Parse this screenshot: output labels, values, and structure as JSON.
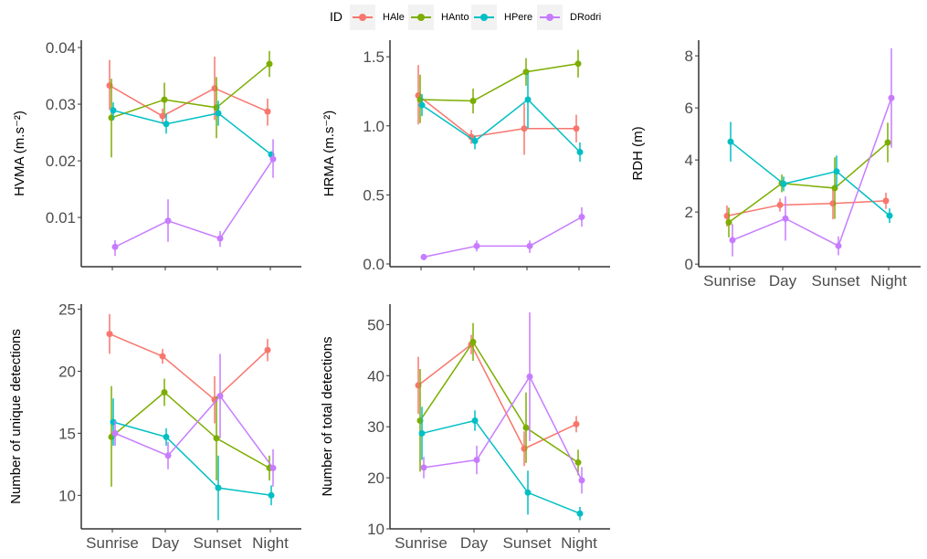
{
  "legend": {
    "title": "ID",
    "position": "top",
    "items": [
      {
        "name": "HAle",
        "color": "#F8766D"
      },
      {
        "name": "HAnto",
        "color": "#7CAE00"
      },
      {
        "name": "HPere",
        "color": "#00BFC4"
      },
      {
        "name": "DRodri",
        "color": "#C77CFF"
      }
    ]
  },
  "chart_data": [
    {
      "type": "line",
      "id": "hvma",
      "ylabel": "HVMA (m.s⁻²)",
      "xlabel": "",
      "categories": [
        "Sunrise",
        "Day",
        "Sunset",
        "Night"
      ],
      "show_x_tick_labels": false,
      "ylim": [
        0.0013,
        0.0413
      ],
      "yticks": [
        0.01,
        0.02,
        0.03,
        0.04
      ],
      "ytick_labels": [
        "0.01",
        "0.02",
        "0.03",
        "0.04"
      ],
      "grid": false,
      "series": [
        {
          "name": "HAle",
          "values": [
            0.0333,
            0.0279,
            0.0328,
            0.0287
          ],
          "lower": [
            0.029,
            0.0265,
            0.0272,
            0.0262
          ],
          "upper": [
            0.0378,
            0.0292,
            0.0384,
            0.031
          ]
        },
        {
          "name": "HAnto",
          "values": [
            0.0276,
            0.0308,
            0.0294,
            0.0371
          ],
          "lower": [
            0.0206,
            0.0283,
            0.024,
            0.0348
          ],
          "upper": [
            0.0345,
            0.0338,
            0.0348,
            0.0394
          ]
        },
        {
          "name": "HPere",
          "values": [
            0.0289,
            0.0265,
            0.0284,
            0.0211
          ],
          "lower": [
            0.0272,
            0.0248,
            0.0262,
            0.0205
          ],
          "upper": [
            0.0303,
            0.0283,
            0.0306,
            0.0217
          ]
        },
        {
          "name": "DRodri",
          "values": [
            0.0048,
            0.0094,
            0.0063,
            0.0203
          ],
          "lower": [
            0.0032,
            0.0057,
            0.0048,
            0.017
          ],
          "upper": [
            0.006,
            0.0132,
            0.0076,
            0.0238
          ]
        }
      ]
    },
    {
      "type": "line",
      "id": "hrma",
      "ylabel": "HRMA (m.s⁻²)",
      "xlabel": "",
      "categories": [
        "Sunrise",
        "Day",
        "Sunset",
        "Night"
      ],
      "show_x_tick_labels": false,
      "ylim": [
        -0.02,
        1.62
      ],
      "yticks": [
        0.0,
        0.5,
        1.0,
        1.5
      ],
      "ytick_labels": [
        "0.0",
        "0.5",
        "1.0",
        "1.5"
      ],
      "grid": false,
      "series": [
        {
          "name": "HAle",
          "values": [
            1.22,
            0.92,
            0.98,
            0.98
          ],
          "lower": [
            1.01,
            0.87,
            0.79,
            0.88
          ],
          "upper": [
            1.44,
            0.97,
            1.16,
            1.08
          ]
        },
        {
          "name": "HAnto",
          "values": [
            1.19,
            1.18,
            1.39,
            1.45
          ],
          "lower": [
            1.02,
            1.09,
            1.29,
            1.35
          ],
          "upper": [
            1.37,
            1.27,
            1.49,
            1.55
          ]
        },
        {
          "name": "HPere",
          "values": [
            1.15,
            0.89,
            1.19,
            0.81
          ],
          "lower": [
            1.07,
            0.83,
            0.98,
            0.74
          ],
          "upper": [
            1.23,
            0.93,
            1.38,
            0.88
          ]
        },
        {
          "name": "DRodri",
          "values": [
            0.05,
            0.13,
            0.13,
            0.34
          ],
          "lower": [
            0.04,
            0.09,
            0.08,
            0.27
          ],
          "upper": [
            0.06,
            0.17,
            0.17,
            0.41
          ]
        }
      ]
    },
    {
      "type": "line",
      "id": "rdh",
      "ylabel": "RDH (m)",
      "xlabel": "",
      "categories": [
        "Sunrise",
        "Day",
        "Sunset",
        "Night"
      ],
      "show_x_tick_labels": true,
      "ylim": [
        -0.1,
        8.6
      ],
      "yticks": [
        0,
        2,
        4,
        6,
        8
      ],
      "ytick_labels": [
        "0",
        "2",
        "4",
        "6",
        "8"
      ],
      "grid": false,
      "series": [
        {
          "name": "HAle",
          "values": [
            1.85,
            2.27,
            2.33,
            2.43
          ],
          "lower": [
            1.45,
            2.02,
            1.72,
            2.12
          ],
          "upper": [
            2.25,
            2.52,
            2.94,
            2.74
          ]
        },
        {
          "name": "HAnto",
          "values": [
            1.6,
            3.1,
            2.92,
            4.67
          ],
          "lower": [
            1.03,
            2.76,
            1.74,
            3.91
          ],
          "upper": [
            2.17,
            3.44,
            4.1,
            5.43
          ]
        },
        {
          "name": "HPere",
          "values": [
            4.7,
            3.08,
            3.56,
            1.86
          ],
          "lower": [
            3.94,
            2.8,
            2.95,
            1.58
          ],
          "upper": [
            5.46,
            3.36,
            4.17,
            2.14
          ]
        },
        {
          "name": "DRodri",
          "values": [
            0.92,
            1.75,
            0.7,
            6.38
          ],
          "lower": [
            0.3,
            0.9,
            0.34,
            4.47
          ],
          "upper": [
            1.54,
            2.6,
            1.06,
            8.29
          ]
        }
      ]
    },
    {
      "type": "line",
      "id": "unique",
      "ylabel": "Number of unique detections",
      "xlabel": "",
      "categories": [
        "Sunrise",
        "Day",
        "Sunset",
        "Night"
      ],
      "show_x_tick_labels": true,
      "ylim": [
        7.3,
        25.4
      ],
      "yticks": [
        10,
        15,
        20,
        25
      ],
      "ytick_labels": [
        "10",
        "15",
        "20",
        "25"
      ],
      "grid": false,
      "series": [
        {
          "name": "HAle",
          "values": [
            23.0,
            21.2,
            17.7,
            21.7
          ],
          "lower": [
            21.4,
            20.6,
            15.8,
            20.8
          ],
          "upper": [
            24.6,
            21.8,
            19.6,
            22.6
          ]
        },
        {
          "name": "HAnto",
          "values": [
            14.7,
            18.3,
            14.6,
            12.2
          ],
          "lower": [
            10.7,
            17.2,
            11.2,
            11.2
          ],
          "upper": [
            18.8,
            19.4,
            18.0,
            13.2
          ]
        },
        {
          "name": "HPere",
          "values": [
            15.9,
            14.7,
            10.6,
            10.0
          ],
          "lower": [
            14.0,
            14.0,
            8.0,
            9.2
          ],
          "upper": [
            17.8,
            15.4,
            13.2,
            10.8
          ]
        },
        {
          "name": "DRodri",
          "values": [
            15.0,
            13.2,
            18.0,
            12.2
          ],
          "lower": [
            14.0,
            12.1,
            14.6,
            10.7
          ],
          "upper": [
            16.0,
            14.3,
            21.4,
            13.7
          ]
        }
      ]
    },
    {
      "type": "line",
      "id": "total",
      "ylabel": "Number of total detections",
      "xlabel": "",
      "categories": [
        "Sunrise",
        "Day",
        "Sunset",
        "Night"
      ],
      "show_x_tick_labels": true,
      "ylim": [
        10,
        54
      ],
      "yticks": [
        10,
        20,
        30,
        40,
        50
      ],
      "ytick_labels": [
        "10",
        "20",
        "30",
        "40",
        "50"
      ],
      "grid": false,
      "series": [
        {
          "name": "HAle",
          "values": [
            38.1,
            46.1,
            25.7,
            30.5
          ],
          "lower": [
            32.5,
            44.2,
            22.3,
            28.9
          ],
          "upper": [
            43.7,
            48.0,
            29.1,
            32.1
          ]
        },
        {
          "name": "HAnto",
          "values": [
            31.2,
            46.6,
            29.8,
            23.0
          ],
          "lower": [
            21.2,
            42.9,
            22.9,
            20.5
          ],
          "upper": [
            41.3,
            50.3,
            36.7,
            25.5
          ]
        },
        {
          "name": "HPere",
          "values": [
            28.7,
            31.2,
            17.1,
            13.0
          ],
          "lower": [
            23.5,
            29.2,
            12.8,
            11.7
          ],
          "upper": [
            33.9,
            33.2,
            21.4,
            14.3
          ]
        },
        {
          "name": "DRodri",
          "values": [
            22.0,
            23.5,
            39.8,
            19.5
          ],
          "lower": [
            19.9,
            20.7,
            27.2,
            16.9
          ],
          "upper": [
            24.1,
            26.3,
            52.4,
            22.1
          ]
        }
      ]
    }
  ]
}
